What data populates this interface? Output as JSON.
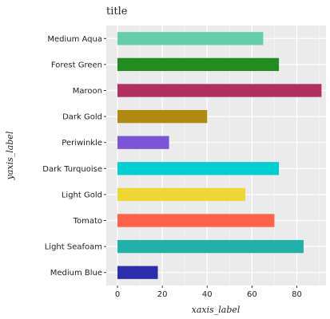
{
  "chart_data": {
    "type": "bar",
    "orientation": "horizontal",
    "title": "title",
    "xlabel": "xaxis_label",
    "ylabel": "yaxis_label",
    "xlim": [
      -5,
      93
    ],
    "xticks": [
      0,
      20,
      40,
      60,
      80
    ],
    "grid": true,
    "background": "#ebebeb",
    "categories": [
      "Medium Blue",
      "Light Seafoam",
      "Tomato",
      "Light Gold",
      "Dark Turquoise",
      "Periwinkle",
      "Dark Gold",
      "Maroon",
      "Forest Green",
      "Medium Aqua"
    ],
    "values": [
      18,
      83,
      70,
      57,
      72,
      23,
      40,
      91,
      72,
      65
    ],
    "colors": [
      "#2b2fae",
      "#20b2aa",
      "#ff6347",
      "#eed636",
      "#00ced1",
      "#7b55d6",
      "#b08a10",
      "#b03060",
      "#228b22",
      "#66cdaa"
    ]
  }
}
